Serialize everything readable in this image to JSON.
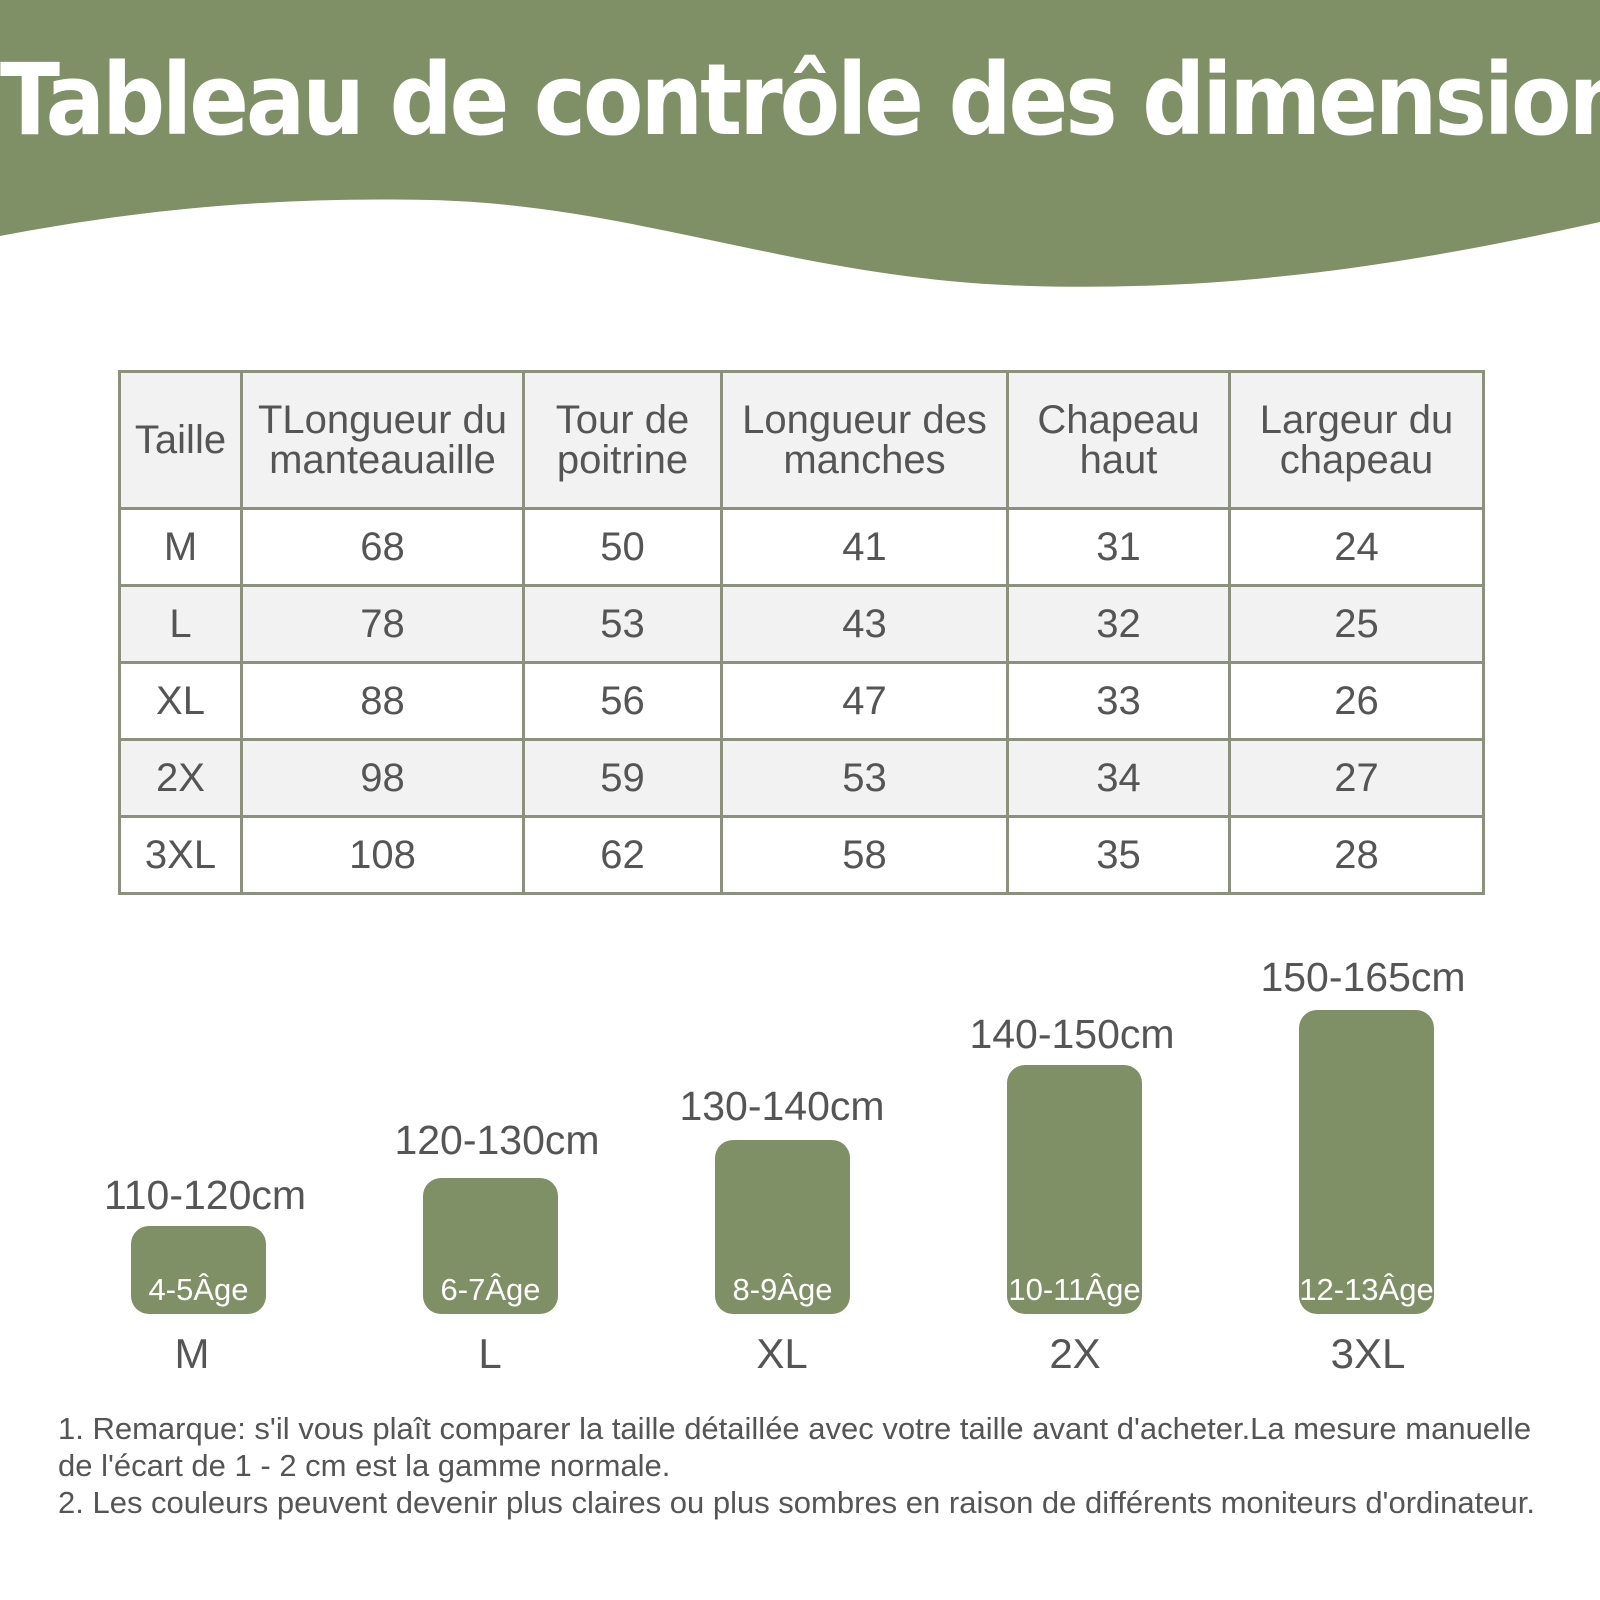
{
  "title": "Tableau de contrôle des dimensions",
  "colors": {
    "banner": "#7f8f66",
    "header_bg": "#f2f2f2",
    "border": "#8b917d",
    "text": "#555555"
  },
  "table": {
    "headers": [
      "Taille",
      "TLongueur du manteauaille",
      "Tour de poitrine",
      "Longueur des manches",
      "Chapeau haut",
      "Largeur du chapeau"
    ],
    "rows": [
      [
        "M",
        "68",
        "50",
        "41",
        "31",
        "24"
      ],
      [
        "L",
        "78",
        "53",
        "43",
        "32",
        "25"
      ],
      [
        "XL",
        "88",
        "56",
        "47",
        "33",
        "26"
      ],
      [
        "2X",
        "98",
        "59",
        "53",
        "34",
        "27"
      ],
      [
        "3XL",
        "108",
        "62",
        "58",
        "35",
        "28"
      ]
    ]
  },
  "height_guide": [
    {
      "range": "110-120cm",
      "age": "4-5Âge",
      "size": "M"
    },
    {
      "range": "120-130cm",
      "age": "6-7Âge",
      "size": "L"
    },
    {
      "range": "130-140cm",
      "age": "8-9Âge",
      "size": "XL"
    },
    {
      "range": "140-150cm",
      "age": "10-11Âge",
      "size": "2X"
    },
    {
      "range": "150-165cm",
      "age": "12-13Âge",
      "size": "3XL"
    }
  ],
  "notes": [
    "1. Remarque: s'il vous plaît comparer la taille détaillée avec votre taille avant d'acheter.La mesure manuelle de l'écart de 1 - 2 cm est la gamme normale.",
    "2. Les couleurs peuvent devenir plus claires ou plus sombres en raison de différents moniteurs d'ordinateur."
  ]
}
